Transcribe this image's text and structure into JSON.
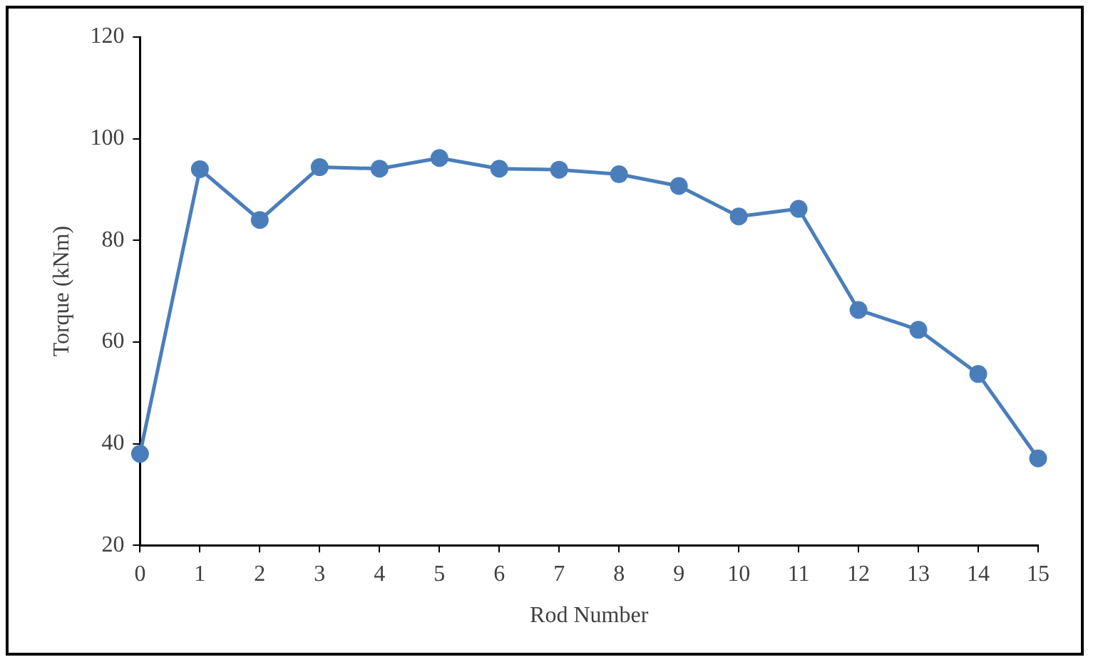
{
  "chart_data": {
    "type": "line",
    "xlabel": "Rod Number",
    "ylabel": "Torque (kNm)",
    "x": [
      0,
      1,
      2,
      3,
      4,
      5,
      6,
      7,
      8,
      9,
      10,
      11,
      12,
      13,
      14,
      15
    ],
    "series": [
      {
        "color": "#4a7ebb",
        "values": [
          38,
          94,
          84,
          94.4,
          94.1,
          96.2,
          94.1,
          93.9,
          93,
          90.7,
          84.7,
          86.2,
          66.3,
          62.4,
          53.7,
          37.1
        ]
      }
    ],
    "xlim": [
      0,
      15
    ],
    "xticks": [
      0,
      1,
      2,
      3,
      4,
      5,
      6,
      7,
      8,
      9,
      10,
      11,
      12,
      13,
      14,
      15
    ],
    "ylim": [
      20,
      120
    ],
    "yticks": [
      20,
      40,
      60,
      80,
      100,
      120
    ],
    "grid": false,
    "legend": false,
    "marker": "circle",
    "line_style": "solid"
  }
}
